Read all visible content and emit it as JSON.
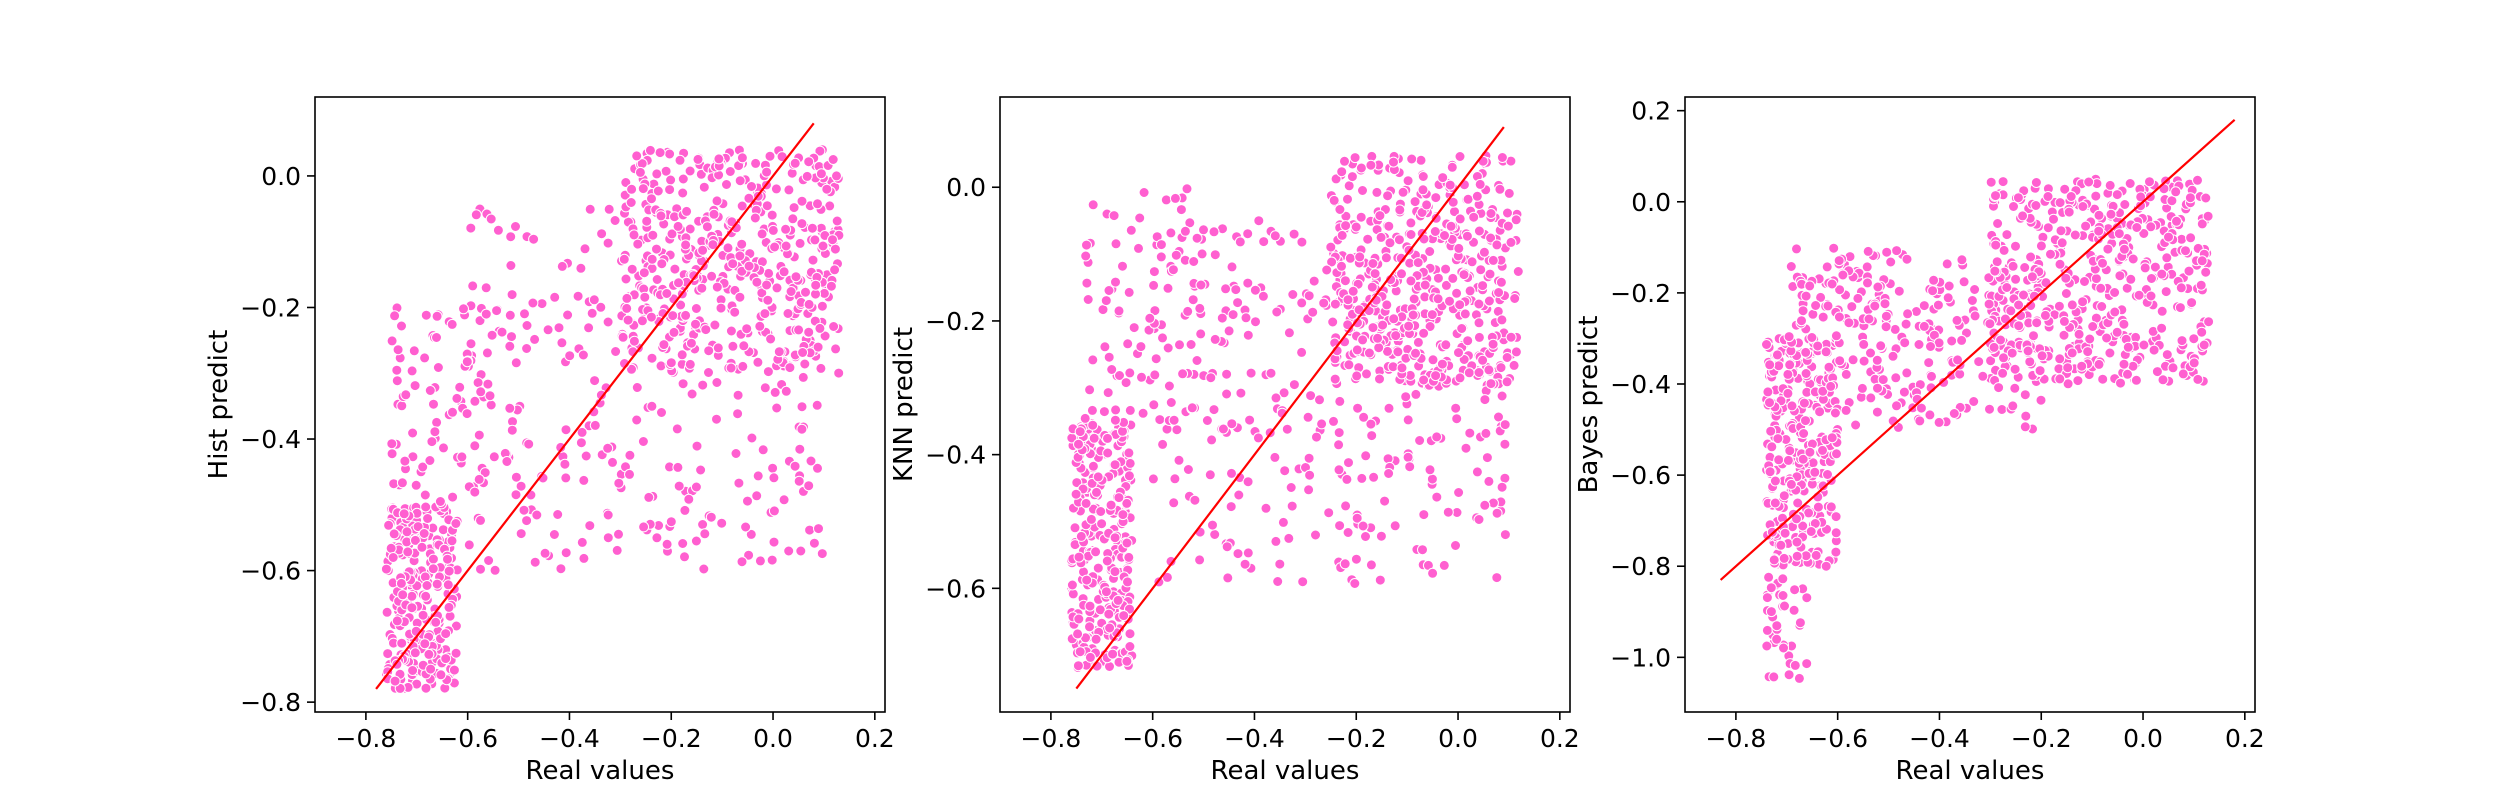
{
  "chart_data": [
    {
      "type": "scatter",
      "xlabel": "Real values",
      "ylabel": "Hist predict",
      "xlim": [
        -0.9,
        0.22
      ],
      "ylim": [
        -0.815,
        0.12
      ],
      "xticks": [
        -0.8,
        -0.6,
        -0.4,
        -0.2,
        0.0,
        0.2
      ],
      "xtick_labels": [
        "−0.8",
        "−0.6",
        "−0.4",
        "−0.2",
        "0.0",
        "0.2"
      ],
      "yticks": [
        0.0,
        -0.2,
        -0.4,
        -0.6,
        -0.8
      ],
      "ytick_labels": [
        "0.0",
        "−0.2",
        "−0.4",
        "−0.6",
        "−0.8"
      ],
      "grid": false,
      "line": {
        "x": [
          -0.78,
          0.08
        ],
        "y": [
          -0.78,
          0.08
        ]
      },
      "clusters": [
        {
          "x": [
            -0.76,
            -0.62
          ],
          "y": [
            -0.78,
            -0.5
          ],
          "n": 260
        },
        {
          "x": [
            -0.3,
            0.13
          ],
          "y": [
            -0.3,
            0.04
          ],
          "n": 420
        },
        {
          "x": [
            -0.6,
            0.1
          ],
          "y": [
            -0.6,
            -0.05
          ],
          "n": 300
        },
        {
          "x": [
            -0.75,
            -0.5
          ],
          "y": [
            -0.5,
            -0.2
          ],
          "n": 90
        }
      ]
    },
    {
      "type": "scatter",
      "xlabel": "Real values",
      "ylabel": "KNN predict",
      "xlim": [
        -0.9,
        0.22
      ],
      "ylim": [
        -0.785,
        0.135
      ],
      "xticks": [
        -0.8,
        -0.6,
        -0.4,
        -0.2,
        0.0,
        0.2
      ],
      "xtick_labels": [
        "−0.8",
        "−0.6",
        "−0.4",
        "−0.2",
        "0.0",
        "0.2"
      ],
      "yticks": [
        0.0,
        -0.2,
        -0.4,
        -0.6
      ],
      "ytick_labels": [
        "0.0",
        "−0.2",
        "−0.4",
        "−0.6"
      ],
      "grid": false,
      "line": {
        "x": [
          -0.75,
          0.09
        ],
        "y": [
          -0.75,
          0.09
        ]
      },
      "clusters": [
        {
          "x": [
            -0.76,
            -0.64
          ],
          "y": [
            -0.72,
            -0.35
          ],
          "n": 280
        },
        {
          "x": [
            -0.25,
            0.12
          ],
          "y": [
            -0.3,
            0.05
          ],
          "n": 420
        },
        {
          "x": [
            -0.6,
            0.1
          ],
          "y": [
            -0.6,
            -0.05
          ],
          "n": 320
        },
        {
          "x": [
            -0.74,
            -0.5
          ],
          "y": [
            -0.35,
            0.0
          ],
          "n": 90
        }
      ]
    },
    {
      "type": "scatter",
      "xlabel": "Real values",
      "ylabel": "Bayes predict",
      "xlim": [
        -0.9,
        0.22
      ],
      "ylim": [
        -1.12,
        0.23
      ],
      "xticks": [
        -0.8,
        -0.6,
        -0.4,
        -0.2,
        0.0,
        0.2
      ],
      "xtick_labels": [
        "−0.8",
        "−0.6",
        "−0.4",
        "−0.2",
        "0.0",
        "0.2"
      ],
      "yticks": [
        0.2,
        0.0,
        -0.2,
        -0.4,
        -0.6,
        -0.8,
        -1.0
      ],
      "ytick_labels": [
        "0.2",
        "0.0",
        "−0.2",
        "−0.4",
        "−0.6",
        "−0.8",
        "−1.0"
      ],
      "grid": false,
      "line": {
        "x": [
          -0.83,
          0.18
        ],
        "y": [
          -0.83,
          0.18
        ]
      },
      "clusters": [
        {
          "x": [
            -0.74,
            -0.6
          ],
          "y": [
            -0.8,
            -0.3
          ],
          "n": 300
        },
        {
          "x": [
            -0.74,
            -0.66
          ],
          "y": [
            -1.05,
            -0.8
          ],
          "n": 40
        },
        {
          "x": [
            -0.3,
            0.13
          ],
          "y": [
            -0.4,
            0.05
          ],
          "n": 450
        },
        {
          "x": [
            -0.6,
            -0.2
          ],
          "y": [
            -0.5,
            -0.1
          ],
          "n": 220
        },
        {
          "x": [
            -0.7,
            -0.5
          ],
          "y": [
            -0.35,
            -0.1
          ],
          "n": 60
        }
      ]
    }
  ],
  "colors": {
    "points": "#ff5fd0",
    "line": "#ff0000"
  }
}
